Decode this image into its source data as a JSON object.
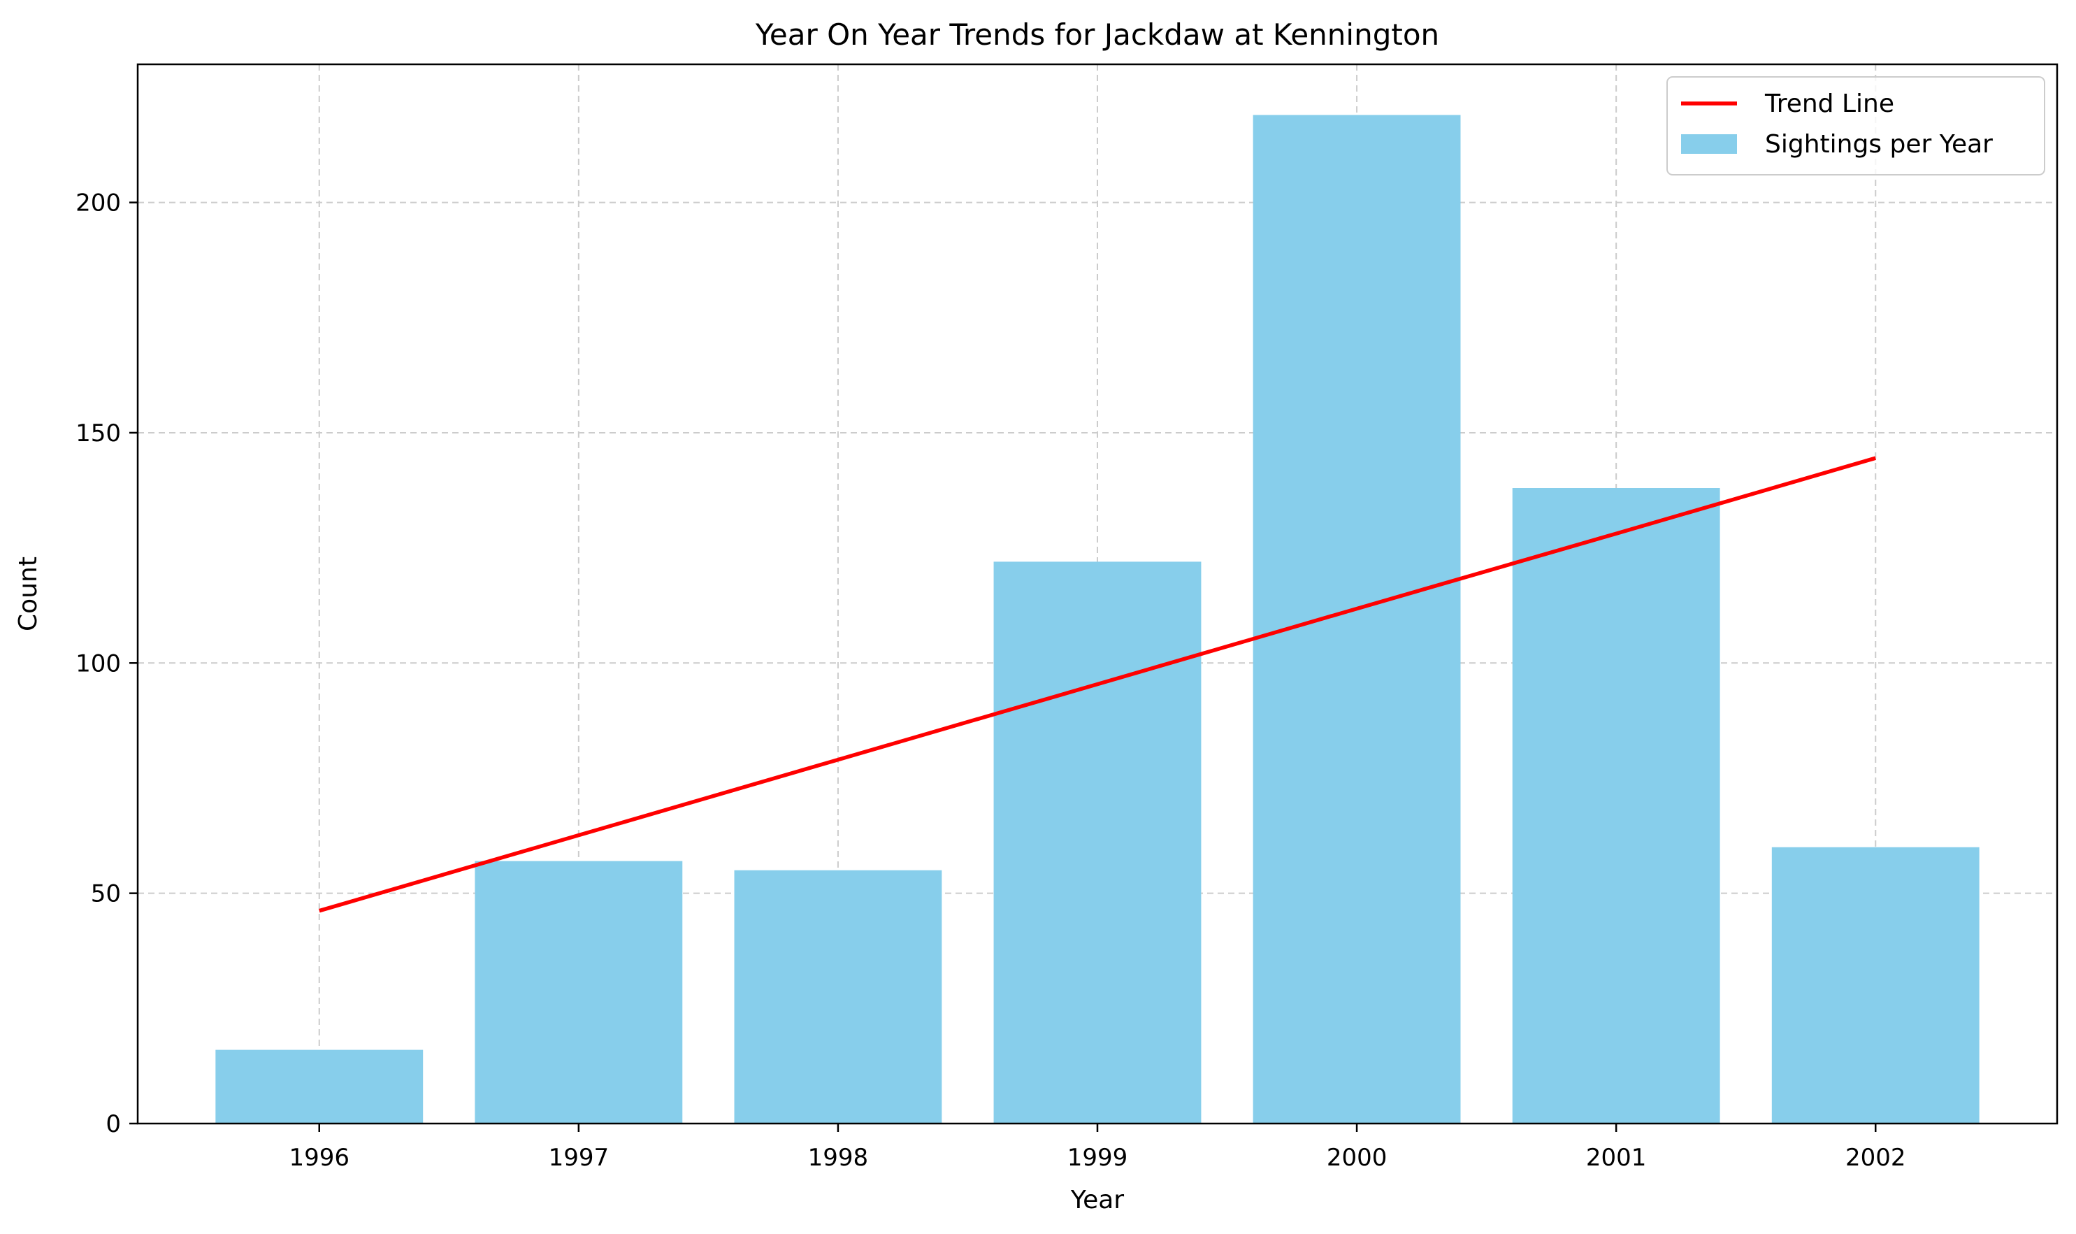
{
  "chart_data": {
    "type": "bar",
    "title": "Year On Year Trends for Jackdaw at Kennington",
    "xlabel": "Year",
    "ylabel": "Count",
    "categories": [
      "1996",
      "1997",
      "1998",
      "1999",
      "2000",
      "2001",
      "2002"
    ],
    "series": [
      {
        "name": "Sightings per Year",
        "type": "bar",
        "values": [
          16,
          57,
          55,
          122,
          219,
          138,
          60
        ],
        "color": "#87CEEB"
      },
      {
        "name": "Trend Line",
        "type": "line",
        "values": [
          46.2,
          62.6,
          79.0,
          95.4,
          111.8,
          128.1,
          144.5
        ],
        "color": "#FF0000"
      }
    ],
    "ylim": [
      0,
      230
    ],
    "yticks": [
      0,
      50,
      100,
      150,
      200
    ],
    "grid": true,
    "grid_style": "dashed",
    "legend_position": "top-right"
  }
}
